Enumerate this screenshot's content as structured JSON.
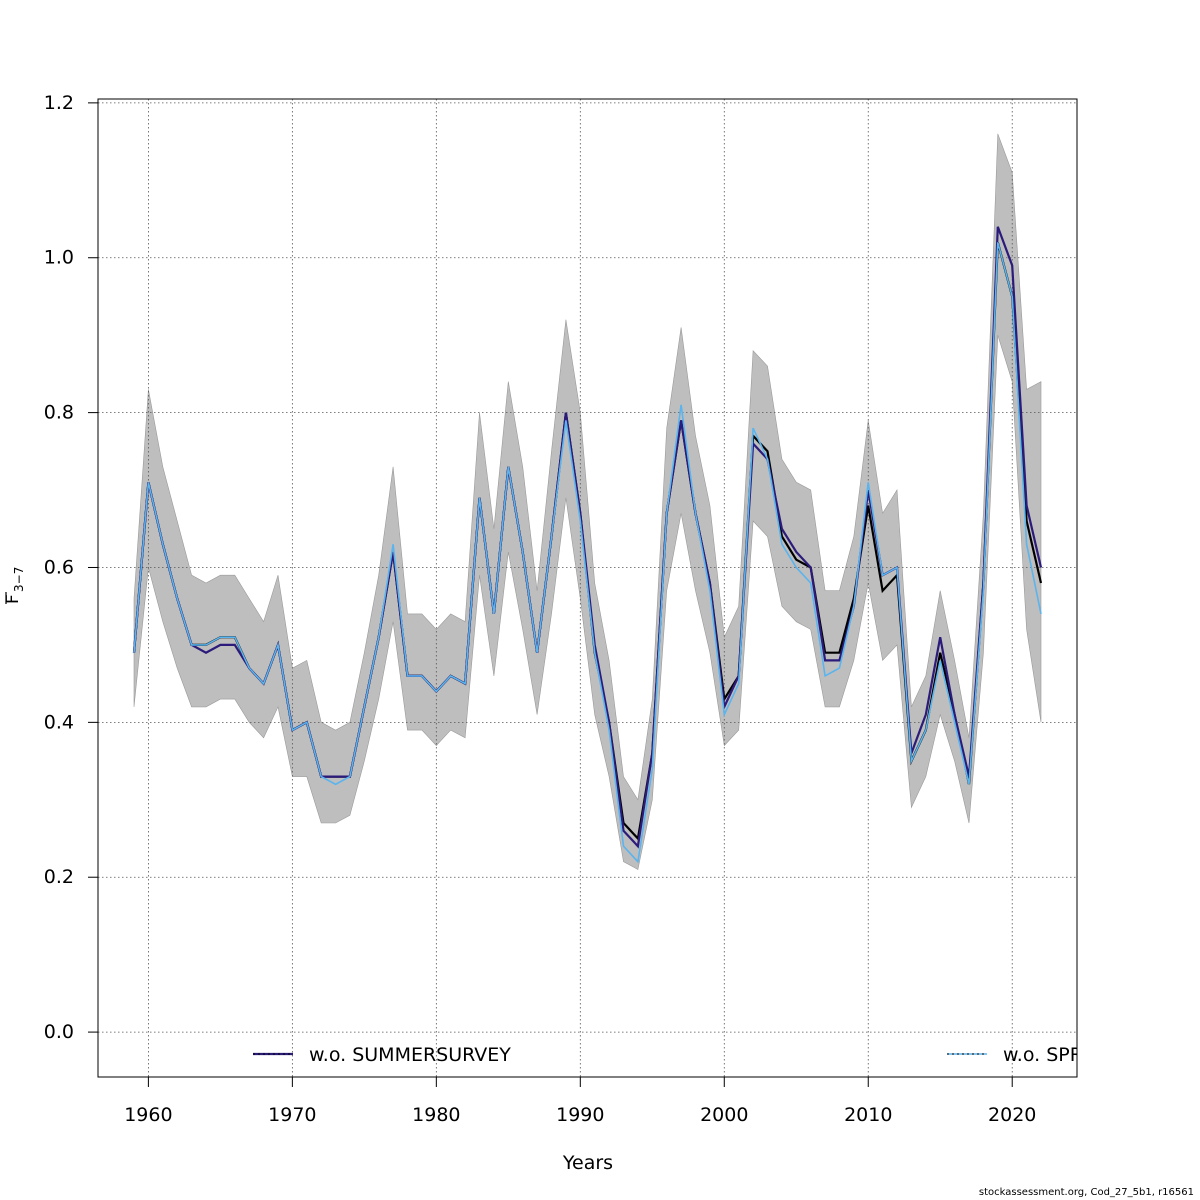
{
  "chart_data": {
    "type": "line",
    "xlabel": "Years",
    "ylabel_main": "F",
    "ylabel_sub": "3−7",
    "xlim": [
      1956.5,
      2024.5
    ],
    "ylim": [
      -0.058,
      1.205
    ],
    "xticks": [
      1960,
      1970,
      1980,
      1990,
      2000,
      2010,
      2020
    ],
    "yticks": [
      0.0,
      0.2,
      0.4,
      0.6,
      0.8,
      1.0,
      1.2
    ],
    "ytick_labels": [
      "0.0",
      "0.2",
      "0.4",
      "0.6",
      "0.8",
      "1.0",
      "1.2"
    ],
    "grid": true,
    "legend_position": "bottom",
    "colors": {
      "band": "#bebebe",
      "base": "#000000",
      "summer": "#2c1b7a",
      "spr": "#5ab4ee",
      "grid": "#555555"
    },
    "years_base": [
      1959,
      1960,
      1961,
      1962,
      1963,
      1964,
      1965,
      1966,
      1967,
      1968,
      1969,
      1970,
      1971,
      1972,
      1973,
      1974,
      1975,
      1976,
      1977,
      1978,
      1979,
      1980,
      1981,
      1982,
      1983,
      1984,
      1985,
      1986,
      1987,
      1988,
      1989,
      1990,
      1991,
      1992,
      1993,
      1994,
      1995,
      1996,
      1997,
      1998,
      1999,
      2000,
      2001,
      2002,
      2003,
      2004,
      2005,
      2006,
      2007,
      2008,
      2009,
      2010,
      2011,
      2012,
      2013,
      2014,
      2015,
      2016,
      2017,
      2018,
      2019,
      2020,
      2021,
      2022
    ],
    "base": [
      0.49,
      0.71,
      0.63,
      0.56,
      0.5,
      0.5,
      0.51,
      0.51,
      0.47,
      0.45,
      0.5,
      0.39,
      0.4,
      0.33,
      0.33,
      0.33,
      0.42,
      0.51,
      0.62,
      0.46,
      0.46,
      0.44,
      0.46,
      0.45,
      0.69,
      0.54,
      0.73,
      0.62,
      0.49,
      0.64,
      0.8,
      0.67,
      0.49,
      0.4,
      0.27,
      0.25,
      0.36,
      0.67,
      0.79,
      0.67,
      0.58,
      0.43,
      0.46,
      0.77,
      0.75,
      0.64,
      0.61,
      0.6,
      0.49,
      0.49,
      0.56,
      0.68,
      0.57,
      0.59,
      0.35,
      0.39,
      0.49,
      0.41,
      0.32,
      0.58,
      1.02,
      0.95,
      0.66,
      0.58
    ],
    "upper": [
      0.56,
      0.83,
      0.73,
      0.66,
      0.59,
      0.58,
      0.59,
      0.59,
      0.56,
      0.53,
      0.59,
      0.47,
      0.48,
      0.4,
      0.39,
      0.4,
      0.49,
      0.59,
      0.73,
      0.54,
      0.54,
      0.52,
      0.54,
      0.53,
      0.8,
      0.65,
      0.84,
      0.73,
      0.57,
      0.75,
      0.92,
      0.8,
      0.58,
      0.48,
      0.33,
      0.3,
      0.43,
      0.78,
      0.91,
      0.77,
      0.68,
      0.51,
      0.55,
      0.88,
      0.86,
      0.74,
      0.71,
      0.7,
      0.57,
      0.57,
      0.64,
      0.79,
      0.67,
      0.7,
      0.42,
      0.46,
      0.57,
      0.48,
      0.38,
      0.67,
      1.16,
      1.11,
      0.83,
      0.84
    ],
    "lower": [
      0.42,
      0.6,
      0.53,
      0.47,
      0.42,
      0.42,
      0.43,
      0.43,
      0.4,
      0.38,
      0.42,
      0.33,
      0.33,
      0.27,
      0.27,
      0.28,
      0.35,
      0.43,
      0.53,
      0.39,
      0.39,
      0.37,
      0.39,
      0.38,
      0.59,
      0.46,
      0.62,
      0.52,
      0.41,
      0.54,
      0.69,
      0.56,
      0.41,
      0.33,
      0.22,
      0.21,
      0.3,
      0.57,
      0.67,
      0.57,
      0.49,
      0.37,
      0.39,
      0.66,
      0.64,
      0.55,
      0.53,
      0.52,
      0.42,
      0.42,
      0.48,
      0.58,
      0.48,
      0.5,
      0.29,
      0.33,
      0.41,
      0.35,
      0.27,
      0.49,
      0.9,
      0.84,
      0.52,
      0.4
    ],
    "series": [
      {
        "name": "w.o. SUMMERSURVEY",
        "color": "#2c1b7a",
        "end_year": 2022,
        "values": [
          0.49,
          0.71,
          0.63,
          0.56,
          0.5,
          0.49,
          0.5,
          0.5,
          0.47,
          0.45,
          0.5,
          0.39,
          0.4,
          0.33,
          0.33,
          0.33,
          0.42,
          0.51,
          0.62,
          0.46,
          0.46,
          0.44,
          0.46,
          0.45,
          0.69,
          0.54,
          0.73,
          0.62,
          0.49,
          0.64,
          0.8,
          0.67,
          0.5,
          0.4,
          0.26,
          0.24,
          0.36,
          0.67,
          0.79,
          0.67,
          0.58,
          0.42,
          0.46,
          0.76,
          0.74,
          0.65,
          0.62,
          0.6,
          0.48,
          0.48,
          0.55,
          0.7,
          0.59,
          0.6,
          0.36,
          0.41,
          0.51,
          0.41,
          0.33,
          0.58,
          1.04,
          0.99,
          0.68,
          0.6
        ]
      },
      {
        "name": "w.o. SPR",
        "color": "#5ab4ee",
        "end_year": 2022,
        "values": [
          0.49,
          0.71,
          0.63,
          0.56,
          0.5,
          0.5,
          0.51,
          0.51,
          0.47,
          0.45,
          0.5,
          0.39,
          0.4,
          0.33,
          0.32,
          0.33,
          0.42,
          0.51,
          0.63,
          0.46,
          0.46,
          0.44,
          0.46,
          0.45,
          0.69,
          0.54,
          0.73,
          0.62,
          0.49,
          0.64,
          0.79,
          0.66,
          0.49,
          0.39,
          0.24,
          0.22,
          0.34,
          0.67,
          0.81,
          0.67,
          0.57,
          0.41,
          0.45,
          0.78,
          0.74,
          0.63,
          0.6,
          0.58,
          0.46,
          0.47,
          0.55,
          0.71,
          0.59,
          0.6,
          0.35,
          0.39,
          0.48,
          0.4,
          0.32,
          0.57,
          1.02,
          0.95,
          0.63,
          0.54
        ]
      }
    ]
  },
  "footer": {
    "text": "stockassessment.org, Cod_27_5b1, r16561"
  }
}
